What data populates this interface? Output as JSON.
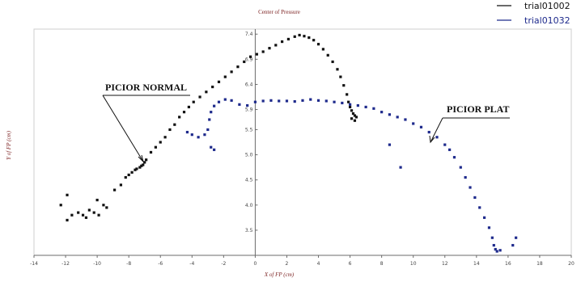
{
  "chart_data": {
    "type": "scatter",
    "title": "Center of Pressure",
    "xlabel": "X of FP (cm)",
    "ylabel": "Y of FP (cm)",
    "xlim": [
      -14,
      20
    ],
    "ylim": [
      3,
      7.5
    ],
    "x_ticks": [
      -14,
      -12,
      -10,
      -8,
      -6,
      -4,
      -2,
      0,
      2,
      4,
      6,
      8,
      10,
      12,
      14,
      16,
      18,
      20
    ],
    "y_ticks": [
      3.5,
      4.0,
      4.5,
      5.0,
      5.5,
      5.9,
      6.4,
      6.9,
      7.4
    ],
    "grid": false,
    "legend_position": "top-right",
    "series": [
      {
        "name": "trial01002",
        "color": "#111111",
        "points": [
          [
            -12.3,
            4.0
          ],
          [
            -11.9,
            4.2
          ],
          [
            -11.9,
            3.7
          ],
          [
            -11.6,
            3.8
          ],
          [
            -11.2,
            3.85
          ],
          [
            -10.9,
            3.8
          ],
          [
            -10.7,
            3.75
          ],
          [
            -10.5,
            3.9
          ],
          [
            -10.2,
            3.85
          ],
          [
            -10.0,
            4.1
          ],
          [
            -9.9,
            3.8
          ],
          [
            -9.6,
            4.0
          ],
          [
            -9.4,
            3.95
          ],
          [
            -8.9,
            4.3
          ],
          [
            -8.5,
            4.4
          ],
          [
            -8.2,
            4.55
          ],
          [
            -8.0,
            4.6
          ],
          [
            -7.8,
            4.65
          ],
          [
            -7.6,
            4.7
          ],
          [
            -7.5,
            4.72
          ],
          [
            -7.3,
            4.75
          ],
          [
            -7.2,
            4.78
          ],
          [
            -7.1,
            4.8
          ],
          [
            -7.0,
            4.85
          ],
          [
            -6.9,
            4.9
          ],
          [
            -6.6,
            5.05
          ],
          [
            -6.3,
            5.15
          ],
          [
            -6.0,
            5.25
          ],
          [
            -5.7,
            5.35
          ],
          [
            -5.4,
            5.5
          ],
          [
            -5.1,
            5.6
          ],
          [
            -4.8,
            5.75
          ],
          [
            -4.5,
            5.85
          ],
          [
            -4.2,
            5.95
          ],
          [
            -3.9,
            6.05
          ],
          [
            -3.5,
            6.15
          ],
          [
            -3.1,
            6.25
          ],
          [
            -2.7,
            6.35
          ],
          [
            -2.3,
            6.45
          ],
          [
            -1.9,
            6.55
          ],
          [
            -1.5,
            6.65
          ],
          [
            -1.1,
            6.75
          ],
          [
            -0.7,
            6.85
          ],
          [
            -0.3,
            6.95
          ],
          [
            0.1,
            7.0
          ],
          [
            0.5,
            7.05
          ],
          [
            0.9,
            7.12
          ],
          [
            1.3,
            7.18
          ],
          [
            1.7,
            7.25
          ],
          [
            2.1,
            7.3
          ],
          [
            2.5,
            7.35
          ],
          [
            2.8,
            7.38
          ],
          [
            3.1,
            7.36
          ],
          [
            3.4,
            7.33
          ],
          [
            3.7,
            7.28
          ],
          [
            4.0,
            7.2
          ],
          [
            4.3,
            7.1
          ],
          [
            4.6,
            6.98
          ],
          [
            4.9,
            6.85
          ],
          [
            5.2,
            6.7
          ],
          [
            5.4,
            6.55
          ],
          [
            5.6,
            6.38
          ],
          [
            5.8,
            6.2
          ],
          [
            5.9,
            6.05
          ],
          [
            6.0,
            5.95
          ],
          [
            6.1,
            5.88
          ],
          [
            6.2,
            5.82
          ],
          [
            6.3,
            5.78
          ],
          [
            6.4,
            5.75
          ],
          [
            6.3,
            5.68
          ],
          [
            6.1,
            5.72
          ]
        ]
      },
      {
        "name": "trial01032",
        "color": "#1e2a8c",
        "points": [
          [
            -4.3,
            5.45
          ],
          [
            -4.0,
            5.4
          ],
          [
            -3.6,
            5.35
          ],
          [
            -3.2,
            5.4
          ],
          [
            -2.8,
            5.15
          ],
          [
            -2.6,
            5.1
          ],
          [
            -3.0,
            5.5
          ],
          [
            -2.9,
            5.7
          ],
          [
            -2.8,
            5.85
          ],
          [
            -2.6,
            5.97
          ],
          [
            -2.3,
            6.05
          ],
          [
            -1.9,
            6.1
          ],
          [
            -1.5,
            6.08
          ],
          [
            -1.0,
            6.0
          ],
          [
            -0.5,
            5.98
          ],
          [
            0.0,
            6.05
          ],
          [
            0.5,
            6.07
          ],
          [
            1.0,
            6.08
          ],
          [
            1.5,
            6.07
          ],
          [
            2.0,
            6.07
          ],
          [
            2.5,
            6.06
          ],
          [
            3.0,
            6.08
          ],
          [
            3.5,
            6.1
          ],
          [
            4.0,
            6.08
          ],
          [
            4.5,
            6.07
          ],
          [
            5.0,
            6.05
          ],
          [
            5.5,
            6.03
          ],
          [
            6.0,
            6.0
          ],
          [
            6.5,
            5.98
          ],
          [
            7.0,
            5.95
          ],
          [
            7.5,
            5.92
          ],
          [
            8.0,
            5.85
          ],
          [
            8.5,
            5.8
          ],
          [
            9.0,
            5.75
          ],
          [
            9.5,
            5.7
          ],
          [
            10.0,
            5.62
          ],
          [
            10.5,
            5.55
          ],
          [
            11.0,
            5.45
          ],
          [
            11.5,
            5.35
          ],
          [
            12.0,
            5.2
          ],
          [
            12.3,
            5.1
          ],
          [
            12.6,
            4.95
          ],
          [
            13.0,
            4.75
          ],
          [
            13.3,
            4.55
          ],
          [
            13.6,
            4.35
          ],
          [
            13.9,
            4.15
          ],
          [
            14.2,
            3.95
          ],
          [
            14.5,
            3.75
          ],
          [
            14.8,
            3.55
          ],
          [
            15.0,
            3.35
          ],
          [
            15.1,
            3.2
          ],
          [
            15.2,
            3.12
          ],
          [
            15.3,
            3.08
          ],
          [
            16.5,
            3.35
          ],
          [
            16.3,
            3.2
          ],
          [
            15.5,
            3.1
          ],
          [
            9.2,
            4.75
          ],
          [
            8.5,
            5.2
          ]
        ]
      }
    ],
    "annotations": [
      {
        "text": "PICIOR NORMAL",
        "x": -7.2,
        "y": 4.85
      },
      {
        "text": "PICIOR PLAT",
        "x": 11.0,
        "y": 5.45
      }
    ]
  }
}
